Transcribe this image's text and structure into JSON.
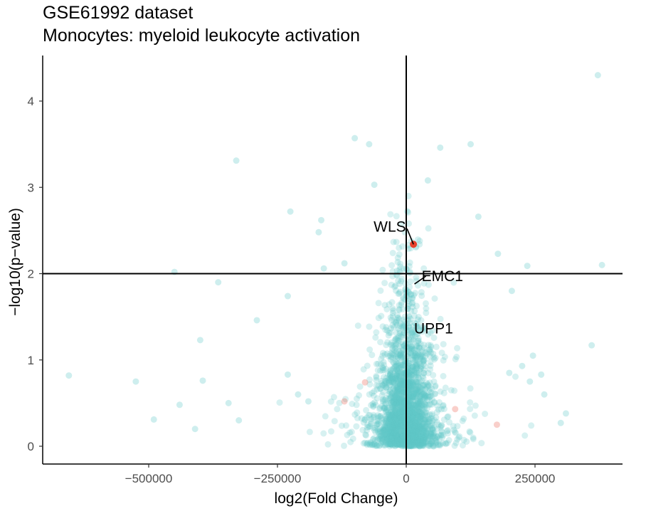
{
  "chart_data": {
    "type": "scatter",
    "title": "GSE61992 dataset",
    "subtitle": "Monocytes: myeloid leukocyte activation",
    "xlabel": "log2(Fold Change)",
    "ylabel": "−log10(p−value)",
    "xlim": [
      -730000,
      420000
    ],
    "ylim": [
      -0.2,
      4.5
    ],
    "x_ticks": [
      -500000,
      -250000,
      0,
      250000
    ],
    "x_tick_labels": [
      "−500000",
      "−250000",
      "0",
      "250000"
    ],
    "y_ticks": [
      0,
      1,
      2,
      3,
      4
    ],
    "y_tick_labels": [
      "0",
      "1",
      "2",
      "3",
      "4"
    ],
    "reference_lines": {
      "vertical_x": 0,
      "horizontal_y": 2
    },
    "grid": false,
    "colors": {
      "background_points": "#5ec8c8",
      "highlight_points": "#e8412c",
      "axis": "#000000"
    },
    "highlighted": [
      {
        "label": "WLS",
        "x": 14000,
        "y": 2.34
      },
      {
        "label": "EMC1",
        "x": 16000,
        "y": 1.88
      },
      {
        "label": "UPP1",
        "x": 40000,
        "y": 1.72
      }
    ],
    "faint_red_points": [
      {
        "x": -120000,
        "y": 0.52
      },
      {
        "x": -80000,
        "y": 0.74
      },
      {
        "x": 176000,
        "y": 0.25
      },
      {
        "x": 95000,
        "y": 0.43
      }
    ],
    "outlier_points": [
      {
        "x": 372000,
        "y": 4.3
      },
      {
        "x": -330000,
        "y": 3.31
      },
      {
        "x": -100000,
        "y": 3.57
      },
      {
        "x": -72000,
        "y": 3.5
      },
      {
        "x": 125000,
        "y": 3.5
      },
      {
        "x": 66000,
        "y": 3.46
      },
      {
        "x": -225000,
        "y": 2.72
      },
      {
        "x": -165000,
        "y": 2.62
      },
      {
        "x": -450000,
        "y": 2.02
      },
      {
        "x": -365000,
        "y": 1.9
      },
      {
        "x": -230000,
        "y": 1.74
      },
      {
        "x": 380000,
        "y": 2.1
      },
      {
        "x": 235000,
        "y": 2.09
      },
      {
        "x": 178000,
        "y": 2.23
      },
      {
        "x": 205000,
        "y": 1.8
      },
      {
        "x": -290000,
        "y": 1.46
      },
      {
        "x": -400000,
        "y": 1.23
      },
      {
        "x": 360000,
        "y": 1.17
      },
      {
        "x": -655000,
        "y": 0.82
      },
      {
        "x": -525000,
        "y": 0.75
      },
      {
        "x": -490000,
        "y": 0.31
      },
      {
        "x": -410000,
        "y": 0.2
      },
      {
        "x": -440000,
        "y": 0.48
      },
      {
        "x": -395000,
        "y": 0.76
      },
      {
        "x": -345000,
        "y": 0.5
      },
      {
        "x": -325000,
        "y": 0.3
      },
      {
        "x": 240000,
        "y": 0.75
      },
      {
        "x": 262000,
        "y": 0.83
      },
      {
        "x": 268000,
        "y": 0.6
      },
      {
        "x": 310000,
        "y": 0.38
      },
      {
        "x": 300000,
        "y": 0.27
      },
      {
        "x": 246000,
        "y": 1.05
      },
      {
        "x": 225000,
        "y": 0.93
      },
      {
        "x": 200000,
        "y": 0.85
      },
      {
        "x": -230000,
        "y": 0.83
      },
      {
        "x": -210000,
        "y": 0.6
      },
      {
        "x": -190000,
        "y": 0.52
      },
      {
        "x": 140000,
        "y": 2.66
      },
      {
        "x": -62000,
        "y": 3.03
      },
      {
        "x": 42000,
        "y": 3.08
      },
      {
        "x": -120000,
        "y": 2.12
      },
      {
        "x": -160000,
        "y": 2.06
      },
      {
        "x": -170000,
        "y": 2.48
      }
    ],
    "cloud_description_params": {
      "n_background_points": 2300,
      "width_sd": 52000,
      "seed": 61992
    }
  }
}
